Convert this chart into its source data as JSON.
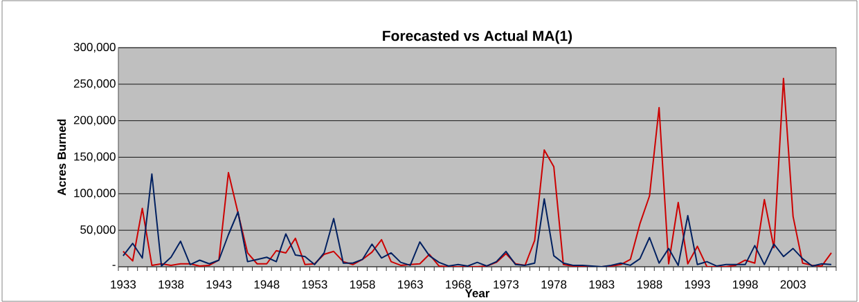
{
  "chart_data": {
    "type": "line",
    "title": "Forecasted vs Actual MA(1)",
    "xlabel": "Year",
    "ylabel": "Acres Burned",
    "categories": [
      "1933",
      null,
      null,
      null,
      null,
      "1938",
      null,
      null,
      null,
      null,
      "1943",
      null,
      null,
      null,
      null,
      "1948",
      null,
      null,
      null,
      null,
      "1953",
      null,
      null,
      null,
      null,
      "1958",
      null,
      null,
      null,
      null,
      "1963",
      null,
      null,
      null,
      null,
      "1968",
      null,
      null,
      null,
      null,
      "1973",
      null,
      null,
      null,
      null,
      "1978",
      null,
      null,
      null,
      null,
      "1983",
      null,
      null,
      null,
      null,
      "1988",
      null,
      null,
      null,
      null,
      "1993",
      null,
      null,
      null,
      null,
      "1998",
      null,
      null,
      null,
      null,
      "2003",
      null,
      null,
      null,
      null
    ],
    "series": [
      {
        "color": "#cc0000",
        "values": [
          21000,
          8000,
          80000,
          2000,
          4000,
          2000,
          4000,
          4000,
          1000,
          2000,
          9000,
          129000,
          74000,
          19000,
          4000,
          4000,
          22000,
          19000,
          39000,
          3000,
          4000,
          17000,
          21000,
          7000,
          3000,
          10000,
          20000,
          37000,
          7000,
          2000,
          3000,
          4000,
          17000,
          1000,
          0,
          0,
          0,
          0,
          1000,
          6000,
          18000,
          4000,
          2000,
          36000,
          160000,
          137000,
          3000,
          1000,
          0,
          0,
          0,
          1000,
          3000,
          10000,
          59000,
          97000,
          218000,
          4000,
          88000,
          4000,
          28000,
          0,
          0,
          0,
          2000,
          9000,
          5000,
          92000,
          26000,
          258000,
          69000,
          5000,
          2000,
          1000,
          19000
        ]
      },
      {
        "color": "#002060",
        "values": [
          15000,
          32000,
          12000,
          127000,
          1000,
          13000,
          35000,
          3000,
          9000,
          4000,
          9000,
          44000,
          75000,
          7000,
          10000,
          13000,
          7000,
          45000,
          16000,
          14000,
          3000,
          19000,
          66000,
          5000,
          5000,
          10000,
          31000,
          12000,
          19000,
          6000,
          2000,
          34000,
          15000,
          6000,
          1000,
          3000,
          1000,
          6000,
          1000,
          7000,
          21000,
          3000,
          2000,
          5000,
          93000,
          15000,
          5000,
          2000,
          2000,
          1000,
          0,
          2000,
          5000,
          2000,
          11000,
          40000,
          5000,
          25000,
          2000,
          70000,
          3000,
          7000,
          1000,
          3000,
          3000,
          3000,
          29000,
          3000,
          31000,
          14000,
          25000,
          11000,
          1000,
          4000,
          3000
        ]
      }
    ],
    "ylim": [
      0,
      300000
    ],
    "yticks": [
      {
        "value": 0,
        "label": "-"
      },
      {
        "value": 50000,
        "label": "50,000"
      },
      {
        "value": 100000,
        "label": "100,000"
      },
      {
        "value": 150000,
        "label": "150,000"
      },
      {
        "value": 200000,
        "label": "200,000"
      },
      {
        "value": 250000,
        "label": "250,000"
      },
      {
        "value": 300000,
        "label": "300,000"
      }
    ],
    "grid": "y"
  }
}
